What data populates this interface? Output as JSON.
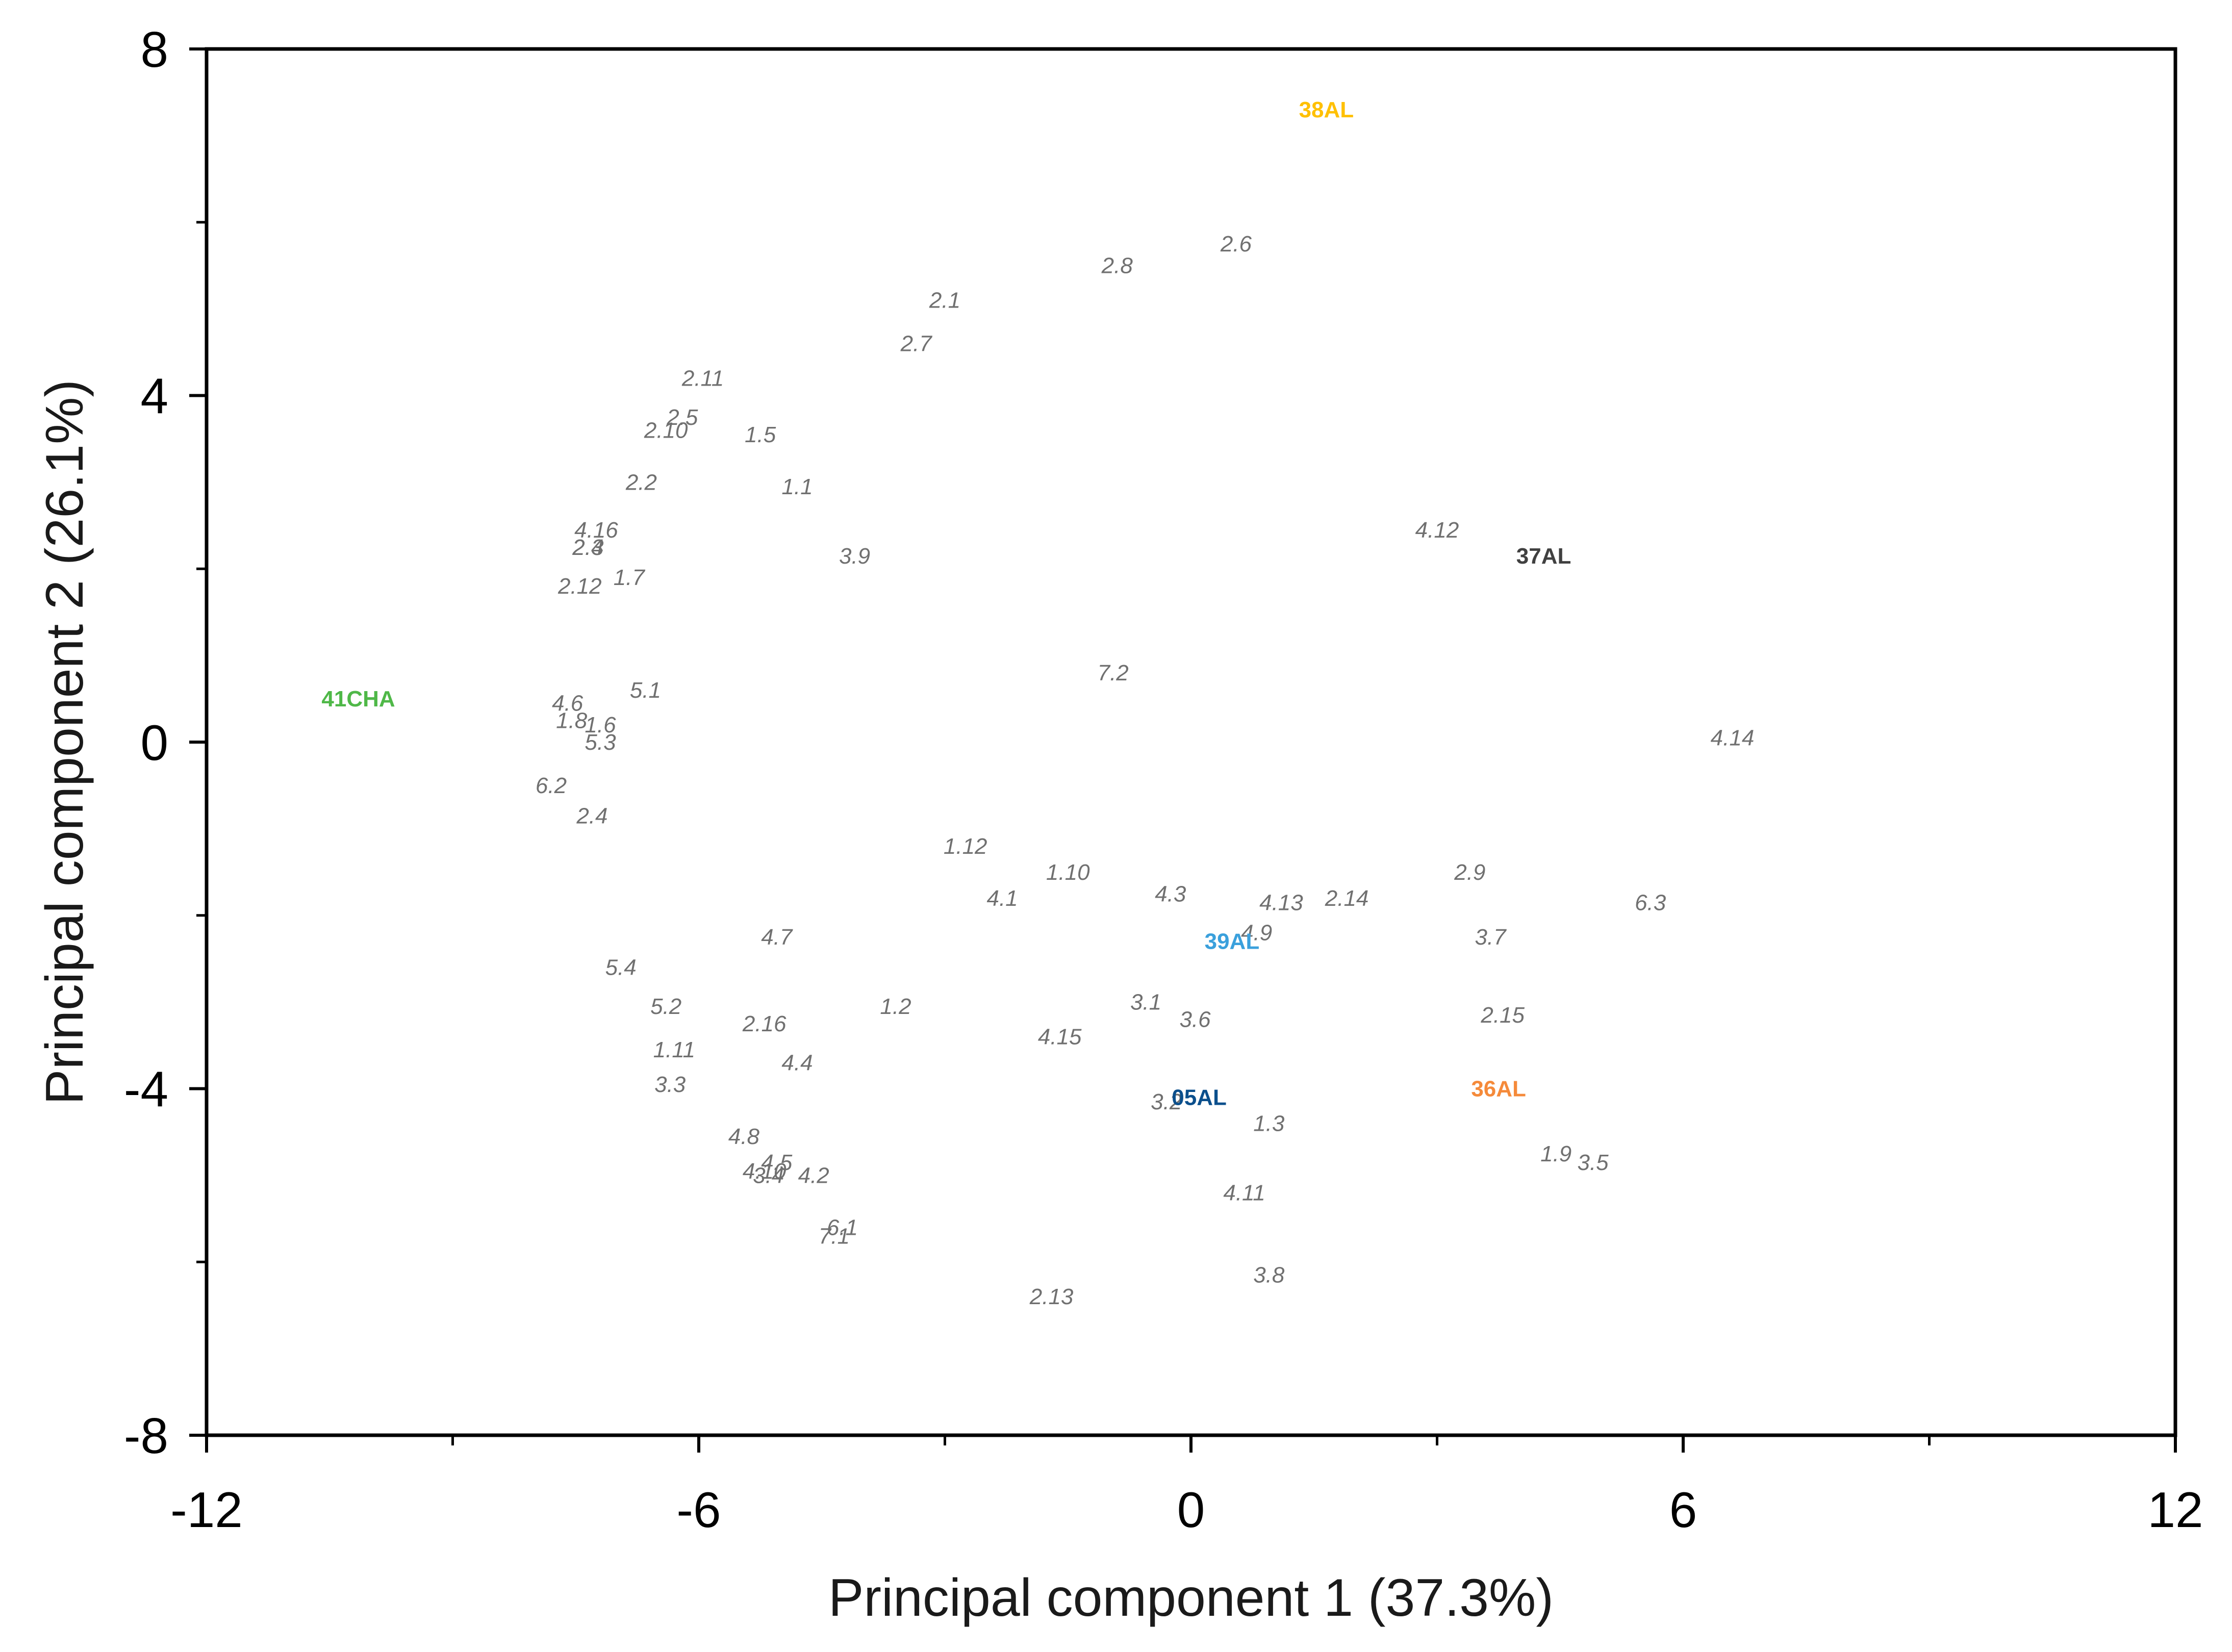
{
  "chart_data": {
    "type": "scatter",
    "xlabel": "Principal component 1 (37.3%)",
    "ylabel": "Principal component 2 (26.1%)",
    "xlim": [
      -12,
      12
    ],
    "ylim": [
      -8,
      8
    ],
    "x_ticks": [
      -12,
      -6,
      0,
      6,
      12
    ],
    "y_ticks": [
      8,
      4,
      0,
      -4,
      -8
    ],
    "x_minor_ticks": [
      -9,
      -3,
      3,
      9
    ],
    "y_minor_ticks": [
      6,
      2,
      -2,
      -6
    ],
    "grid": false,
    "point_color": "#707070",
    "points": [
      {
        "label": "2.6",
        "x": 0.55,
        "y": 5.75
      },
      {
        "label": "2.8",
        "x": -0.9,
        "y": 5.5
      },
      {
        "label": "2.1",
        "x": -3.0,
        "y": 5.1
      },
      {
        "label": "2.7",
        "x": -3.35,
        "y": 4.6
      },
      {
        "label": "2.11",
        "x": -5.95,
        "y": 4.2
      },
      {
        "label": "2.5",
        "x": -6.2,
        "y": 3.75
      },
      {
        "label": "2.10",
        "x": -6.4,
        "y": 3.6
      },
      {
        "label": "1.5",
        "x": -5.25,
        "y": 3.55
      },
      {
        "label": "2.2",
        "x": -6.7,
        "y": 3.0
      },
      {
        "label": "1.1",
        "x": -4.8,
        "y": 2.95
      },
      {
        "label": "4.16",
        "x": -7.25,
        "y": 2.45
      },
      {
        "label": "2.4",
        "x": -7.35,
        "y": 2.25
      },
      {
        "label": "2.3",
        "x": -7.35,
        "y": 2.25
      },
      {
        "label": "3.9",
        "x": -4.1,
        "y": 2.15
      },
      {
        "label": "4.12",
        "x": 3.0,
        "y": 2.45
      },
      {
        "label": "2.12",
        "x": -7.45,
        "y": 1.8
      },
      {
        "label": "1.7",
        "x": -6.85,
        "y": 1.9
      },
      {
        "label": "7.2",
        "x": -0.95,
        "y": 0.8
      },
      {
        "label": "5.1",
        "x": -6.65,
        "y": 0.6
      },
      {
        "label": "4.6",
        "x": -7.6,
        "y": 0.45
      },
      {
        "label": "1.8",
        "x": -7.55,
        "y": 0.25
      },
      {
        "label": "1.6",
        "x": -7.2,
        "y": 0.2
      },
      {
        "label": "5.3",
        "x": -7.2,
        "y": 0.0
      },
      {
        "label": "4.14",
        "x": 6.6,
        "y": 0.05
      },
      {
        "label": "6.2",
        "x": -7.8,
        "y": -0.5
      },
      {
        "label": "2.4",
        "x": -7.3,
        "y": -0.85
      },
      {
        "label": "1.12",
        "x": -2.75,
        "y": -1.2
      },
      {
        "label": "1.10",
        "x": -1.5,
        "y": -1.5
      },
      {
        "label": "4.1",
        "x": -2.3,
        "y": -1.8
      },
      {
        "label": "4.3",
        "x": -0.25,
        "y": -1.75
      },
      {
        "label": "4.13",
        "x": 1.1,
        "y": -1.85
      },
      {
        "label": "2.14",
        "x": 1.9,
        "y": -1.8
      },
      {
        "label": "2.9",
        "x": 3.4,
        "y": -1.5
      },
      {
        "label": "6.3",
        "x": 5.6,
        "y": -1.85
      },
      {
        "label": "4.9",
        "x": 0.8,
        "y": -2.2
      },
      {
        "label": "3.7",
        "x": 3.65,
        "y": -2.25
      },
      {
        "label": "4.7",
        "x": -5.05,
        "y": -2.25
      },
      {
        "label": "5.4",
        "x": -6.95,
        "y": -2.6
      },
      {
        "label": "5.2",
        "x": -6.4,
        "y": -3.05
      },
      {
        "label": "1.2",
        "x": -3.6,
        "y": -3.05
      },
      {
        "label": "3.1",
        "x": -0.55,
        "y": -3.0
      },
      {
        "label": "3.6",
        "x": 0.05,
        "y": -3.2
      },
      {
        "label": "2.15",
        "x": 3.8,
        "y": -3.15
      },
      {
        "label": "2.16",
        "x": -5.2,
        "y": -3.25
      },
      {
        "label": "4.15",
        "x": -1.6,
        "y": -3.4
      },
      {
        "label": "1.11",
        "x": -6.3,
        "y": -3.55
      },
      {
        "label": "4.4",
        "x": -4.8,
        "y": -3.7
      },
      {
        "label": "3.3",
        "x": -6.35,
        "y": -3.95
      },
      {
        "label": "3.2",
        "x": -0.3,
        "y": -4.15
      },
      {
        "label": "1.3",
        "x": 0.95,
        "y": -4.4
      },
      {
        "label": "1.9",
        "x": 4.45,
        "y": -4.75
      },
      {
        "label": "3.5",
        "x": 4.9,
        "y": -4.85
      },
      {
        "label": "4.8",
        "x": -5.45,
        "y": -4.55
      },
      {
        "label": "4.5",
        "x": -5.05,
        "y": -4.85
      },
      {
        "label": "4.10",
        "x": -5.2,
        "y": -4.95
      },
      {
        "label": "3.4",
        "x": -5.15,
        "y": -5.0
      },
      {
        "label": "4.2",
        "x": -4.6,
        "y": -5.0
      },
      {
        "label": "4.11",
        "x": 0.65,
        "y": -5.2
      },
      {
        "label": "6.1",
        "x": -4.25,
        "y": -5.6
      },
      {
        "label": "7.1",
        "x": -4.35,
        "y": -5.7
      },
      {
        "label": "3.8",
        "x": 0.95,
        "y": -6.15
      },
      {
        "label": "2.13",
        "x": -1.7,
        "y": -6.4
      }
    ],
    "groups": [
      {
        "label": "38AL",
        "x": 1.65,
        "y": 7.3,
        "color": "#FFC000"
      },
      {
        "label": "37AL",
        "x": 4.3,
        "y": 2.15,
        "color": "#404040"
      },
      {
        "label": "41CHA",
        "x": -10.15,
        "y": 0.5,
        "color": "#4FB848"
      },
      {
        "label": "39AL",
        "x": 0.5,
        "y": -2.3,
        "color": "#3AA0DC"
      },
      {
        "label": "05AL",
        "x": 0.1,
        "y": -4.1,
        "color": "#0B4F8C"
      },
      {
        "label": "36AL",
        "x": 3.75,
        "y": -4.0,
        "color": "#F58A3A"
      }
    ]
  }
}
